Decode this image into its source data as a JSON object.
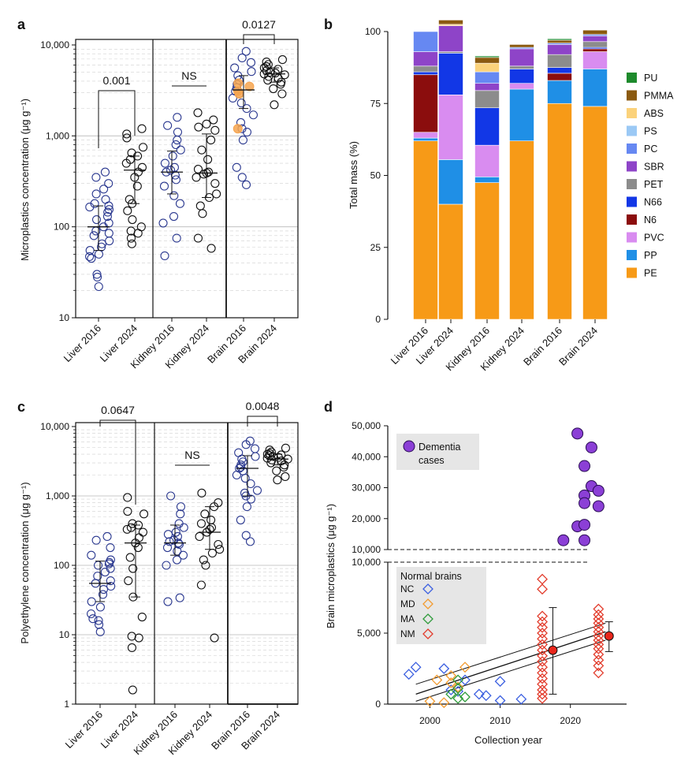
{
  "panels": {
    "a": {
      "label": "a",
      "ylabel": "Microplastics concentration (μg g⁻¹)",
      "yticks": [
        "10",
        "100",
        "1,000",
        "10,000"
      ],
      "groups": [
        "Liver 2016",
        "Liver 2024",
        "Kidney 2016",
        "Kidney 2024",
        "Brain 2016",
        "Brain 2024"
      ],
      "brackets": [
        "0.001",
        "NS",
        "0.0127"
      ]
    },
    "b": {
      "label": "b",
      "ylabel": "Total mass (%)",
      "yticks": [
        "0",
        "25",
        "50",
        "75",
        "100"
      ],
      "groups": [
        "Liver 2016",
        "Liver 2024",
        "Kidney 2016",
        "Kidney 2024",
        "Brain 2016",
        "Brain 2024"
      ]
    },
    "c": {
      "label": "c",
      "ylabel": "Polyethylene concentration (μg g⁻¹)",
      "yticks": [
        "1",
        "10",
        "100",
        "1,000",
        "10,000"
      ],
      "groups": [
        "Liver 2016",
        "Liver 2024",
        "Kidney 2016",
        "Kidney 2024",
        "Brain 2016",
        "Brain 2024"
      ],
      "brackets": [
        "0.0647",
        "NS",
        "0.0048"
      ]
    },
    "d": {
      "label": "d",
      "ylabel": "Brain microplastics (μg g⁻¹)",
      "xlabel": "Collection year",
      "yticks_upper": [
        "10,000",
        "20,000",
        "30,000",
        "40,000",
        "50,000"
      ],
      "yticks_lower": [
        "0",
        "5,000",
        "10,000"
      ],
      "xticks": [
        "2000",
        "2010",
        "2020"
      ],
      "dementia_legend": [
        "Dementia",
        "cases"
      ],
      "normal_title": "Normal brains",
      "normal_codes": [
        "NC",
        "MD",
        "MA",
        "NM"
      ]
    }
  },
  "colors": {
    "navy": "#2b3990",
    "highlight": "#f6a44f",
    "dementia": "#8b3fd6",
    "NC": "#3b5fe0",
    "MD": "#f39b2f",
    "MA": "#2e9b3a",
    "NM": "#e23b2b",
    "meanDot": "#e8261b"
  },
  "chart_data": [
    {
      "panel": "a",
      "type": "scatter",
      "yscale": "log",
      "ylim": [
        10,
        10000
      ],
      "categories": [
        "Liver 2016",
        "Liver 2024",
        "Kidney 2016",
        "Kidney 2024",
        "Brain 2016",
        "Brain 2024"
      ],
      "medians": [
        100,
        420,
        400,
        390,
        3200,
        4800
      ],
      "iqr": [
        [
          55,
          170
        ],
        [
          180,
          600
        ],
        [
          230,
          680
        ],
        [
          210,
          1050
        ],
        [
          2000,
          4600
        ],
        [
          3900,
          5600
        ]
      ],
      "points": [
        [
          22,
          28,
          30,
          45,
          47,
          50,
          55,
          60,
          65,
          70,
          80,
          85,
          90,
          100,
          110,
          120,
          130,
          145,
          155,
          165,
          170,
          180,
          200,
          230,
          260,
          300,
          350,
          400
        ],
        [
          65,
          75,
          85,
          90,
          100,
          120,
          150,
          180,
          200,
          280,
          350,
          400,
          450,
          500,
          550,
          600,
          650,
          750,
          950,
          1050,
          1200
        ],
        [
          48,
          75,
          110,
          130,
          180,
          220,
          280,
          330,
          370,
          400,
          420,
          450,
          500,
          600,
          700,
          800,
          900,
          1100,
          1300,
          1600
        ],
        [
          58,
          75,
          140,
          170,
          210,
          230,
          300,
          350,
          380,
          390,
          400,
          430,
          550,
          700,
          900,
          1150,
          1250,
          1350,
          1500,
          1800
        ],
        [
          290,
          350,
          450,
          900,
          1100,
          1200,
          1400,
          1700,
          2000,
          2300,
          2600,
          2900,
          3100,
          3400,
          3700,
          4100,
          4600,
          5100,
          5600,
          6400,
          7200,
          8500
        ],
        [
          2200,
          2900,
          3300,
          3700,
          3900,
          4100,
          4300,
          4500,
          4700,
          4800,
          4900,
          5000,
          5200,
          5400,
          5600,
          5800,
          6100,
          6500,
          6900
        ]
      ],
      "highlighted": {
        "category": "Brain 2016",
        "values": [
          1200,
          2900,
          3100,
          3500,
          3800
        ]
      },
      "comparisons": [
        {
          "groups": [
            "Liver 2016",
            "Liver 2024"
          ],
          "label": "0.001"
        },
        {
          "groups": [
            "Kidney 2016",
            "Kidney 2024"
          ],
          "label": "NS"
        },
        {
          "groups": [
            "Brain 2016",
            "Brain 2024"
          ],
          "label": "0.0127"
        }
      ]
    },
    {
      "panel": "b",
      "type": "bar",
      "stacked": true,
      "ylabel": "Total mass (%)",
      "ylim": [
        0,
        100
      ],
      "categories": [
        "Liver 2016",
        "Liver 2024",
        "Kidney 2016",
        "Kidney 2024",
        "Brain 2016",
        "Brain 2024"
      ],
      "series": [
        {
          "name": "PE",
          "color": "#f79a17",
          "values": [
            62,
            40,
            47.5,
            62,
            75,
            74
          ]
        },
        {
          "name": "PP",
          "color": "#1f8fe6",
          "values": [
            1,
            15.5,
            2,
            18,
            8,
            13
          ]
        },
        {
          "name": "PVC",
          "color": "#d98cf0",
          "values": [
            2,
            22.5,
            11,
            2,
            0,
            6
          ]
        },
        {
          "name": "N6",
          "color": "#8b0d0d",
          "values": [
            20,
            0,
            0,
            0,
            2.5,
            1
          ]
        },
        {
          "name": "N66",
          "color": "#1237e6",
          "values": [
            1,
            14.5,
            13,
            5,
            2,
            0.5
          ]
        },
        {
          "name": "PET",
          "color": "#8c8c8c",
          "values": [
            2,
            0.5,
            6,
            1,
            4.5,
            2
          ]
        },
        {
          "name": "SBR",
          "color": "#8e44c8",
          "values": [
            5,
            9,
            2.5,
            6,
            3.5,
            2
          ]
        },
        {
          "name": "PC",
          "color": "#6688f2",
          "values": [
            7,
            0,
            4,
            0.5,
            0.5,
            0.5
          ]
        },
        {
          "name": "PS",
          "color": "#9bc9f5",
          "values": [
            0,
            0,
            0,
            0,
            0,
            0
          ]
        },
        {
          "name": "ABS",
          "color": "#fbd27b",
          "values": [
            0,
            0.5,
            3,
            0,
            0,
            0
          ]
        },
        {
          "name": "PMMA",
          "color": "#8b5a10",
          "values": [
            0,
            1.5,
            2,
            1,
            1,
            1.5
          ]
        },
        {
          "name": "PU",
          "color": "#1d8a2c",
          "values": [
            0,
            0,
            0.5,
            0,
            0.5,
            0
          ]
        }
      ],
      "legend_order": [
        "PU",
        "PMMA",
        "ABS",
        "PS",
        "PC",
        "SBR",
        "PET",
        "N66",
        "N6",
        "PVC",
        "PP",
        "PE"
      ]
    },
    {
      "panel": "c",
      "type": "scatter",
      "yscale": "log",
      "ylim": [
        1,
        10000
      ],
      "categories": [
        "Liver 2016",
        "Liver 2024",
        "Kidney 2016",
        "Kidney 2024",
        "Brain 2016",
        "Brain 2024"
      ],
      "medians": [
        55,
        210,
        210,
        300,
        2500,
        3400
      ],
      "iqr": [
        [
          30,
          115
        ],
        [
          35,
          380
        ],
        [
          140,
          380
        ],
        [
          170,
          700
        ],
        [
          1000,
          3800
        ],
        [
          2800,
          4000
        ]
      ],
      "points": [
        [
          11,
          14,
          16,
          17,
          20,
          25,
          30,
          38,
          45,
          50,
          55,
          60,
          70,
          80,
          90,
          100,
          105,
          110,
          120,
          140,
          180,
          230,
          260
        ],
        [
          1.6,
          6.5,
          9,
          9.5,
          18,
          35,
          60,
          90,
          130,
          180,
          210,
          250,
          300,
          330,
          350,
          380,
          400,
          550,
          600,
          950
        ],
        [
          30,
          34,
          100,
          120,
          140,
          160,
          180,
          200,
          210,
          220,
          230,
          260,
          280,
          300,
          350,
          400,
          550,
          700,
          1000
        ],
        [
          9,
          52,
          100,
          120,
          150,
          170,
          200,
          260,
          300,
          330,
          350,
          400,
          450,
          550,
          700,
          800,
          1100
        ],
        [
          220,
          270,
          450,
          700,
          900,
          1000,
          1100,
          1200,
          1500,
          1800,
          2000,
          2300,
          2500,
          2600,
          2800,
          3100,
          3400,
          3700,
          4200,
          4800,
          5500,
          6200
        ],
        [
          1700,
          1900,
          2300,
          2600,
          2800,
          3000,
          3200,
          3300,
          3400,
          3500,
          3600,
          3700,
          3800,
          3900,
          4000,
          4100,
          4300,
          4600,
          4900
        ]
      ],
      "comparisons": [
        {
          "groups": [
            "Liver 2016",
            "Liver 2024"
          ],
          "label": "0.0647"
        },
        {
          "groups": [
            "Kidney 2016",
            "Kidney 2024"
          ],
          "label": "NS"
        },
        {
          "groups": [
            "Brain 2016",
            "Brain 2024"
          ],
          "label": "0.0048"
        }
      ]
    },
    {
      "panel": "d",
      "type": "scatter",
      "xlabel": "Collection year",
      "ylabel": "Brain microplastics (μg g⁻¹)",
      "xlim": [
        1994,
        2028
      ],
      "ylim_lower": [
        0,
        10000
      ],
      "ylim_upper": [
        10000,
        50000
      ],
      "dementia": [
        [
          2019,
          13000
        ],
        [
          2021,
          47500
        ],
        [
          2021,
          17500
        ],
        [
          2022,
          37000
        ],
        [
          2022,
          27500
        ],
        [
          2022,
          25000
        ],
        [
          2022,
          18000
        ],
        [
          2022,
          13000
        ],
        [
          2023,
          43000
        ],
        [
          2023,
          30500
        ],
        [
          2024,
          29000
        ],
        [
          2024,
          24000
        ]
      ],
      "normal": {
        "NC": [
          [
            1997,
            2100
          ],
          [
            1998,
            2600
          ],
          [
            2002,
            2500
          ],
          [
            2003,
            1000
          ],
          [
            2004,
            900
          ],
          [
            2005,
            1700
          ],
          [
            2007,
            700
          ],
          [
            2008,
            600
          ],
          [
            2010,
            1600
          ],
          [
            2010,
            250
          ],
          [
            2013,
            350
          ]
        ],
        "MD": [
          [
            2000,
            200
          ],
          [
            2001,
            1700
          ],
          [
            2002,
            100
          ],
          [
            2003,
            1500
          ],
          [
            2003,
            2000
          ],
          [
            2004,
            1200
          ],
          [
            2005,
            2600
          ]
        ],
        "MA": [
          [
            2003,
            700
          ],
          [
            2004,
            1100
          ],
          [
            2004,
            1700
          ],
          [
            2004,
            400
          ],
          [
            2005,
            500
          ]
        ],
        "NM": [
          [
            2016,
            8800
          ],
          [
            2016,
            8100
          ],
          [
            2016,
            6200
          ],
          [
            2016,
            5800
          ],
          [
            2016,
            5400
          ],
          [
            2016,
            5000
          ],
          [
            2016,
            4600
          ],
          [
            2016,
            4200
          ],
          [
            2016,
            3800
          ],
          [
            2016,
            3400
          ],
          [
            2016,
            3000
          ],
          [
            2016,
            2600
          ],
          [
            2016,
            2200
          ],
          [
            2016,
            1800
          ],
          [
            2016,
            1400
          ],
          [
            2016,
            1000
          ],
          [
            2016,
            700
          ],
          [
            2016,
            400
          ],
          [
            2024,
            6700
          ],
          [
            2024,
            6300
          ],
          [
            2024,
            6000
          ],
          [
            2024,
            5700
          ],
          [
            2024,
            5400
          ],
          [
            2024,
            5100
          ],
          [
            2024,
            4800
          ],
          [
            2024,
            4500
          ],
          [
            2024,
            4200
          ],
          [
            2024,
            3900
          ],
          [
            2024,
            3500
          ],
          [
            2024,
            3100
          ],
          [
            2024,
            2700
          ],
          [
            2024,
            2200
          ]
        ]
      },
      "group_means": [
        {
          "x": 2017.5,
          "y": 3800,
          "low": 700,
          "high": 6800
        },
        {
          "x": 2025.5,
          "y": 4800,
          "low": 3700,
          "high": 5800
        }
      ],
      "regression": {
        "x": [
          1998,
          2025
        ],
        "y": [
          700,
          5100
        ],
        "ci_low": [
          200,
          4500
        ],
        "ci_high": [
          1400,
          5700
        ]
      }
    }
  ]
}
